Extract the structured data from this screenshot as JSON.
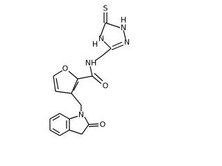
{
  "atoms": [
    {
      "label": "S"
    },
    {
      "label": "H"
    },
    {
      "label": "N"
    },
    {
      "label": "N"
    },
    {
      "label": "N"
    },
    {
      "label": "H"
    },
    {
      "label": "NH"
    },
    {
      "label": "O"
    },
    {
      "label": "O"
    },
    {
      "label": "N"
    },
    {
      "label": "O"
    }
  ]
}
